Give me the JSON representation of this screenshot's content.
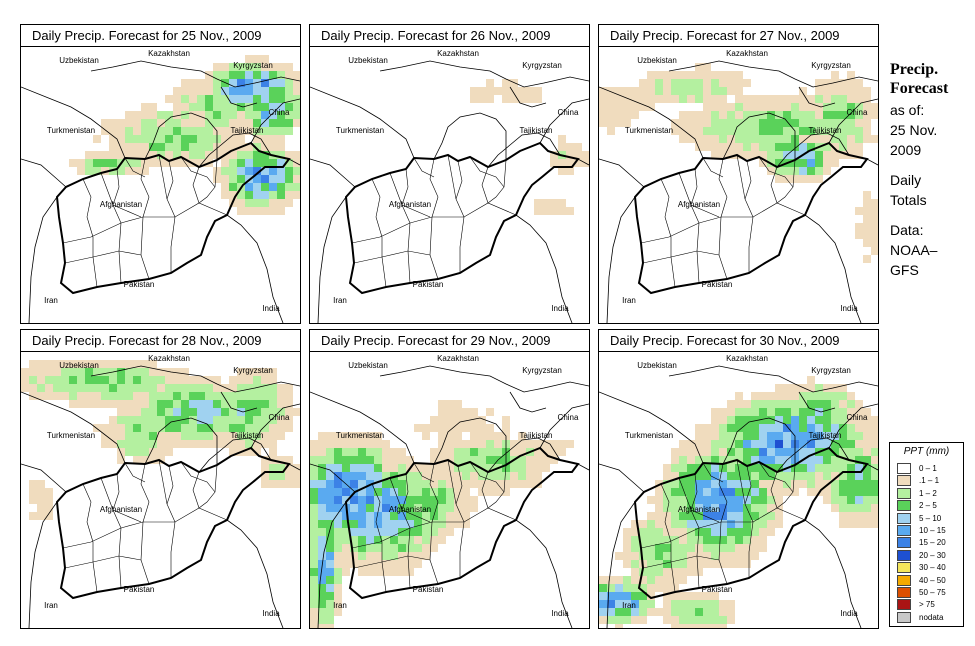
{
  "panels": [
    {
      "title": "Daily Precip. Forecast for  25 Nov., 2009",
      "day": 25
    },
    {
      "title": "Daily Precip. Forecast for  26 Nov., 2009",
      "day": 26
    },
    {
      "title": "Daily Precip. Forecast for  27 Nov., 2009",
      "day": 27
    },
    {
      "title": "Daily Precip. Forecast for  28 Nov., 2009",
      "day": 28
    },
    {
      "title": "Daily Precip. Forecast for  29 Nov., 2009",
      "day": 29
    },
    {
      "title": "Daily Precip. Forecast for  30 Nov., 2009",
      "day": 30
    }
  ],
  "country_labels": [
    "Uzbekistan",
    "Kazakhstan",
    "Kyrgyzstan",
    "China",
    "Tajikistan",
    "Turkmenistan",
    "Afghanistan",
    "Pakistan",
    "Iran",
    "India"
  ],
  "side": {
    "heading_line1": "Precip.",
    "heading_line2": "Forecast",
    "asof": "as of:",
    "date_line1": "25 Nov.",
    "date_line2": "2009",
    "totals_line1": "Daily",
    "totals_line2": "Totals",
    "data_line1": "Data:",
    "data_line2": "NOAA–",
    "data_line3": "GFS"
  },
  "legend": {
    "title": "PPT (mm)",
    "items": [
      {
        "label": "0 – 1",
        "color": "#ffffff"
      },
      {
        "label": ".1 – 1",
        "color": "#f0dcbe"
      },
      {
        "label": "1 – 2",
        "color": "#b4f0a0"
      },
      {
        "label": "2 – 5",
        "color": "#5ad25a"
      },
      {
        "label": "5 – 10",
        "color": "#a0d2f0"
      },
      {
        "label": "10 – 15",
        "color": "#5aaaf0"
      },
      {
        "label": "15 – 20",
        "color": "#3c82e6"
      },
      {
        "label": "20 – 30",
        "color": "#1e50d2"
      },
      {
        "label": "30 – 40",
        "color": "#f5e65a"
      },
      {
        "label": "40 – 50",
        "color": "#f5aa00"
      },
      {
        "label": "50 – 75",
        "color": "#dc5000"
      },
      {
        "label": "> 75",
        "color": "#aa1414"
      },
      {
        "label": "nodata",
        "color": "#c8c8c8"
      }
    ]
  }
}
